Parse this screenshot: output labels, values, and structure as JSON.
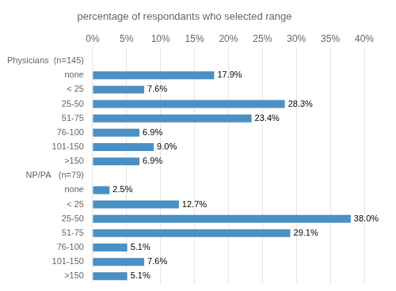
{
  "chart_data": {
    "type": "bar",
    "orientation": "horizontal",
    "title": "percentage of respondants who selected range",
    "categories": [
      ">150",
      "101-150",
      "76-100",
      "51-75",
      "25-50",
      "< 25",
      "none",
      "NP/PA   (n=79)",
      ">150",
      "101-150",
      "76-100",
      "51-75",
      "25-50",
      "< 25",
      "none",
      "Physicians  (n=145)"
    ],
    "values": [
      5.1,
      7.6,
      5.1,
      29.1,
      38.0,
      12.7,
      2.5,
      null,
      6.9,
      9.0,
      6.9,
      23.4,
      28.3,
      7.6,
      17.9,
      null
    ],
    "value_labels": [
      "5.1%",
      "7.6%",
      "5.1%",
      "29.1%",
      "38.0%",
      "12.7%",
      "2.5%",
      null,
      "6.9%",
      "9.0%",
      "6.9%",
      "23.4%",
      "28.3%",
      "7.6%",
      "17.9%",
      null
    ],
    "data_labels": true,
    "color": "#4a90c4",
    "xlim": [
      0,
      40
    ],
    "xticks": [
      {
        "value": 0,
        "label": "0%"
      },
      {
        "value": 5,
        "label": "5%"
      },
      {
        "value": 10,
        "label": "10%"
      },
      {
        "value": 15,
        "label": "15%"
      },
      {
        "value": 20,
        "label": "20%"
      },
      {
        "value": 25,
        "label": "25%"
      },
      {
        "value": 30,
        "label": "30%"
      },
      {
        "value": 35,
        "label": "35%"
      },
      {
        "value": 40,
        "label": "40%"
      }
    ],
    "grid": "x"
  }
}
